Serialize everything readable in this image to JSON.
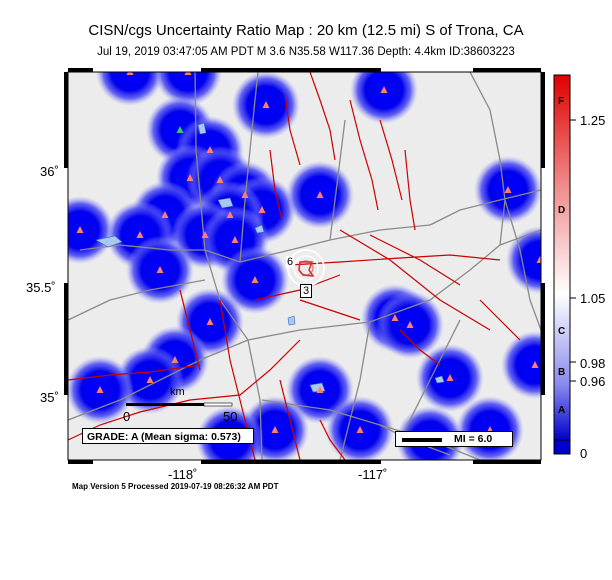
{
  "title": "CISN/cgs Uncertainty Ratio Map : 20 km (12.5 mi) S of Trona, CA",
  "subtitle": "Jul 19, 2019 03:47:05 AM PDT   M 3.6   N35.58 W117.36   Depth: 4.4km   ID:38603223",
  "footer": "Map Version 5 Processed 2019-07-19 08:26:32 AM PDT",
  "grade_label": "GRADE: A (Mean sigma: 0.573)",
  "mi_legend": "MI = 6.0",
  "scale_bar": {
    "unit": "km",
    "start": "0",
    "end": "50"
  },
  "axes": {
    "lat_labels": [
      "36˚",
      "35.5˚",
      "35˚"
    ],
    "lon_labels": [
      "-118˚",
      "-117˚"
    ]
  },
  "colorbar": {
    "letters": [
      "F",
      "D",
      "C",
      "B",
      "A"
    ],
    "values": [
      "1.25",
      "1.05",
      "0.98",
      "0.96",
      "0"
    ],
    "top_color": "#e41a1c",
    "mid_color": "#ffffff",
    "bottom_color": "#0000dd"
  },
  "epicenter_contours": [
    "6",
    "3"
  ],
  "colors": {
    "land": "#ececec",
    "station_glow": "#0000e8",
    "station_marker": "#ff7f6e",
    "fault": "#cc0000",
    "road": "#8a8a8a"
  }
}
